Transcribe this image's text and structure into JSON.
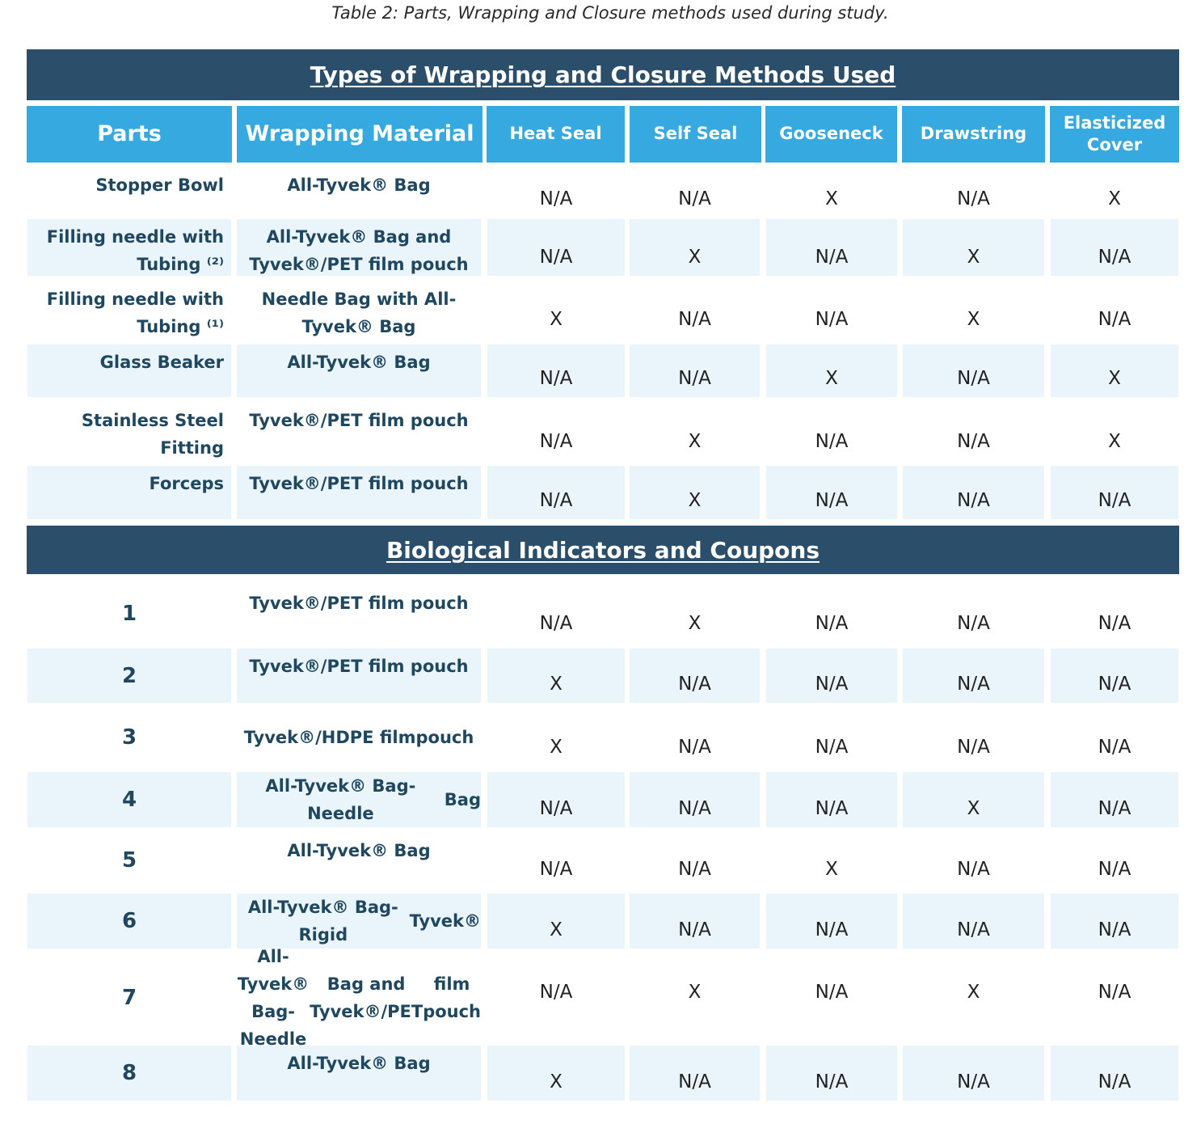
{
  "caption": "Table 2: Parts, Wrapping and Closure methods used during study.",
  "section1_title": "Types of Wrapping and Closure Methods Used",
  "section2_title": "Biological Indicators and Coupons",
  "columns": {
    "parts": "Parts",
    "wrapping": "Wrapping Material",
    "heat_seal": "Heat Seal",
    "self_seal": "Self Seal",
    "gooseneck": "Gooseneck",
    "drawstring": "Drawstring",
    "elasticized": [
      "Elasticized",
      "Cover"
    ]
  },
  "parts_rows": [
    {
      "part": [
        "Stopper Bowl"
      ],
      "wrapping": [
        "All-Tyvek® Bag"
      ],
      "values": [
        "N/A",
        "N/A",
        "X",
        "N/A",
        "X"
      ]
    },
    {
      "part": [
        "Filling needle with",
        "Tubing ⁽²⁾"
      ],
      "wrapping": [
        "All-Tyvek® Bag and",
        "Tyvek®/PET film pouch"
      ],
      "values": [
        "N/A",
        "X",
        "N/A",
        "X",
        "N/A"
      ]
    },
    {
      "part": [
        "Filling needle with",
        "Tubing ⁽¹⁾"
      ],
      "wrapping": [
        "Needle Bag with  All-",
        "Tyvek® Bag"
      ],
      "values": [
        "X",
        "N/A",
        "N/A",
        "X",
        "N/A"
      ]
    },
    {
      "part": [
        "Glass Beaker"
      ],
      "wrapping": [
        "All-Tyvek® Bag"
      ],
      "values": [
        "N/A",
        "N/A",
        "X",
        "N/A",
        "X"
      ]
    },
    {
      "part": [
        "Stainless Steel",
        "Fitting"
      ],
      "wrapping": [
        "Tyvek®/PET film pouch"
      ],
      "values": [
        "N/A",
        "X",
        "N/A",
        "N/A",
        "X"
      ]
    },
    {
      "part": [
        "Forceps"
      ],
      "wrapping": [
        "Tyvek®/PET film pouch"
      ],
      "values": [
        "N/A",
        "X",
        "N/A",
        "N/A",
        "N/A"
      ]
    }
  ],
  "bio_rows": [
    {
      "part": "1",
      "wrapping": [
        "Tyvek®/PET film pouch"
      ],
      "values": [
        "N/A",
        "X",
        "N/A",
        "N/A",
        "N/A"
      ]
    },
    {
      "part": "2",
      "wrapping": [
        "Tyvek®/PET film pouch"
      ],
      "values": [
        "X",
        "N/A",
        "N/A",
        "N/A",
        "N/A"
      ]
    },
    {
      "part": "3",
      "wrapping": [
        "Tyvek®/HDPE film",
        "pouch"
      ],
      "values": [
        "X",
        "N/A",
        "N/A",
        "N/A",
        "N/A"
      ]
    },
    {
      "part": "4",
      "wrapping": [
        "All-Tyvek® Bag- Needle",
        "Bag"
      ],
      "values": [
        "N/A",
        "N/A",
        "N/A",
        "X",
        "N/A"
      ]
    },
    {
      "part": "5",
      "wrapping": [
        "All-Tyvek® Bag"
      ],
      "values": [
        "N/A",
        "N/A",
        "X",
        "N/A",
        "N/A"
      ]
    },
    {
      "part": "6",
      "wrapping": [
        "All-Tyvek® Bag- Rigid",
        "Tyvek®"
      ],
      "values": [
        "X",
        "N/A",
        "N/A",
        "N/A",
        "N/A"
      ]
    },
    {
      "part": "7",
      "wrapping": [
        "All-Tyvek® Bag- Needle",
        "Bag and Tyvek®/PET",
        "film pouch"
      ],
      "values": [
        "N/A",
        "X",
        "N/A",
        "X",
        "N/A"
      ]
    },
    {
      "part": "8",
      "wrapping": [
        "All-Tyvek® Bag"
      ],
      "values": [
        "X",
        "N/A",
        "N/A",
        "N/A",
        "N/A"
      ]
    }
  ]
}
